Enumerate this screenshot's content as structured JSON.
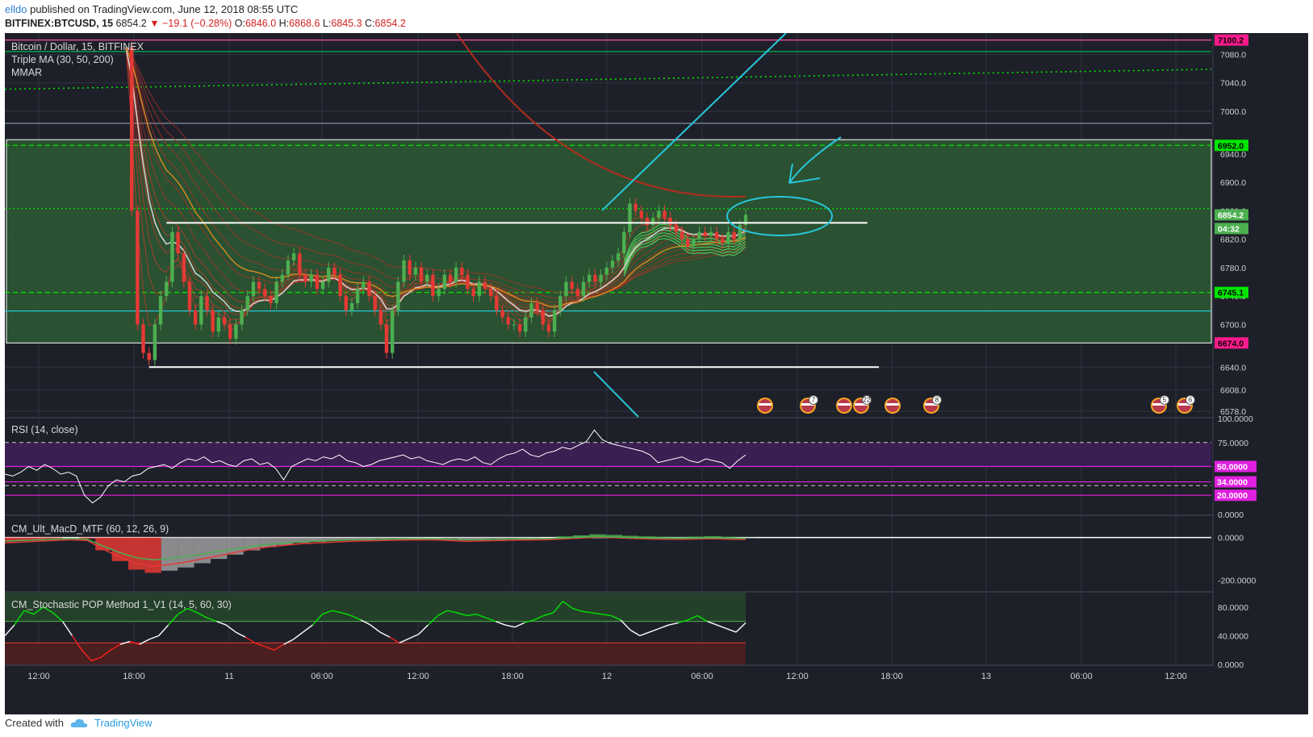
{
  "header": {
    "user": "elldo",
    "published_text": "published on TradingView.com, June 12, 2018 08:55 UTC",
    "symbol": "BITFINEX:BTCUSD, 15",
    "last": "6854.2",
    "change": "▼ −19.1 (−0.28%)",
    "o_label": "O:",
    "o_value": "6846.0",
    "h_label": "H:",
    "h_value": "6868.6",
    "l_label": "L:",
    "l_value": "6845.3",
    "c_label": "C:",
    "c_value": "6854.2"
  },
  "legend": {
    "line1": "Bitcoin / Dollar, 15, BITFINEX",
    "line2": "Triple MA (30, 50, 200)",
    "line3": "MMAR"
  },
  "colors": {
    "background": "#1e2029",
    "grid": "#2f3340",
    "zone_fill": "#2d5a33",
    "up": "#4caf50",
    "down": "#e53935",
    "cyan_drawing": "#26c6da",
    "magenta": "#e020e0",
    "green_label": "#00e600",
    "pink_label": "#ff1a8c"
  },
  "chart_data": [
    {
      "type": "candlestick",
      "title": "Bitcoin / Dollar, 15, BITFINEX",
      "ylim": [
        6570,
        7110
      ],
      "y_ticks": [
        6578,
        6608,
        6640,
        6700,
        6740,
        6780,
        6820,
        6860,
        6900,
        6940,
        7000,
        7040,
        7080
      ],
      "y_tick_labels": [
        "6578.0",
        "6608.0",
        "6640.0",
        "6700.0",
        "6740.0",
        "6780.0",
        "6820.0",
        "6860.0",
        "6900.0",
        "6940.0",
        "7000.0",
        "7040.0",
        "7080.0"
      ],
      "price_labels": [
        {
          "value": 7100.2,
          "text": "7100.2",
          "color": "#ff1a8c"
        },
        {
          "value": 6952.0,
          "text": "6952.0",
          "color": "#00e600"
        },
        {
          "value": 6854.2,
          "text": "6854.2",
          "color": "#4caf50"
        },
        {
          "value": 6835,
          "text": "04:32",
          "color": "#4caf50"
        },
        {
          "value": 6745.1,
          "text": "6745.1",
          "color": "#00e600"
        },
        {
          "value": 6674.0,
          "text": "6674.0",
          "color": "#ff1a8c"
        }
      ],
      "x_tick_labels": [
        "12:00",
        "18:00",
        "11",
        "06:00",
        "12:00",
        "18:00",
        "12",
        "06:00",
        "12:00",
        "18:00",
        "13",
        "06:00",
        "12:00"
      ],
      "horizontal_levels": [
        {
          "value": 7100.2,
          "style": "solid",
          "color": "#ff4da6"
        },
        {
          "value": 7084,
          "style": "solid",
          "color": "#00c853"
        },
        {
          "value": 6983,
          "style": "solid",
          "color": "#8f9bb3"
        },
        {
          "value": 6952.0,
          "style": "dashed",
          "color": "#00e600"
        },
        {
          "value": 6863,
          "style": "dotted",
          "color": "#00e600"
        },
        {
          "value": 6745.1,
          "style": "dashed",
          "color": "#00e600"
        },
        {
          "value": 6719,
          "style": "solid",
          "color": "#26c6da"
        }
      ],
      "support_resistance": [
        {
          "value": 6843,
          "from_index": 7,
          "to_index": 128
        },
        {
          "value": 6640,
          "from_index": 4,
          "to_index": 130
        }
      ],
      "trend_dotted_line": {
        "from": 7031,
        "to": 7059
      },
      "event_markers": [
        "",
        "7",
        "",
        "22",
        "",
        "8",
        "5",
        "6"
      ],
      "candles_close": [
        7090,
        6860,
        6700,
        6660,
        6650,
        6700,
        6740,
        6760,
        6830,
        6800,
        6760,
        6720,
        6700,
        6740,
        6720,
        6690,
        6710,
        6700,
        6680,
        6700,
        6720,
        6740,
        6760,
        6750,
        6740,
        6730,
        6760,
        6770,
        6790,
        6800,
        6770,
        6760,
        6770,
        6750,
        6760,
        6780,
        6770,
        6740,
        6720,
        6730,
        6750,
        6760,
        6740,
        6720,
        6700,
        6660,
        6720,
        6760,
        6790,
        6770,
        6780,
        6760,
        6770,
        6740,
        6750,
        6770,
        6760,
        6780,
        6770,
        6750,
        6740,
        6760,
        6750,
        6740,
        6720,
        6710,
        6700,
        6700,
        6690,
        6710,
        6730,
        6720,
        6700,
        6690,
        6720,
        6740,
        6760,
        6750,
        6740,
        6760,
        6770,
        6760,
        6770,
        6780,
        6790,
        6800,
        6830,
        6870,
        6860,
        6850,
        6840,
        6850,
        6860,
        6850,
        6840,
        6830,
        6820,
        6810,
        6820,
        6830,
        6825,
        6830,
        6820,
        6815,
        6830,
        6820,
        6840,
        6854.2
      ]
    },
    {
      "type": "line",
      "title": "RSI (14, close)",
      "ylim": [
        0,
        100
      ],
      "y_tick_labels": [
        "100.0000",
        "75.0000",
        "0.0000"
      ],
      "levels": [
        {
          "value": 50,
          "text": "50.0000"
        },
        {
          "value": 34,
          "text": "34.0000"
        },
        {
          "value": 20,
          "text": "20.0000"
        }
      ],
      "values": [
        42,
        40,
        44,
        50,
        46,
        52,
        48,
        42,
        44,
        40,
        20,
        12,
        18,
        30,
        36,
        34,
        40,
        42,
        48,
        50,
        52,
        48,
        54,
        58,
        56,
        60,
        54,
        56,
        52,
        50,
        56,
        58,
        52,
        54,
        48,
        36,
        50,
        54,
        58,
        56,
        60,
        58,
        62,
        56,
        54,
        50,
        52,
        56,
        58,
        60,
        62,
        58,
        60,
        56,
        54,
        52,
        56,
        58,
        56,
        60,
        54,
        52,
        58,
        62,
        64,
        68,
        62,
        60,
        64,
        66,
        70,
        68,
        72,
        76,
        88,
        78,
        74,
        72,
        70,
        68,
        66,
        62,
        54,
        56,
        58,
        60,
        56,
        54,
        58,
        56,
        54,
        48,
        56,
        62
      ]
    },
    {
      "type": "line",
      "title": "CM_Ult_MacD_MTF (60, 12, 26, 9)",
      "ylim": [
        -250,
        100
      ],
      "y_tick_labels": [
        "0.0000",
        "-200.0000"
      ],
      "values": [
        -20,
        -15,
        -10,
        -5,
        0,
        -5,
        -60,
        -110,
        -150,
        -165,
        -155,
        -140,
        -120,
        -100,
        -80,
        -60,
        -45,
        -35,
        -25,
        -20,
        -15,
        -10,
        -8,
        -5,
        -3,
        -2,
        -1,
        -5,
        -10,
        -8,
        -5,
        -3,
        -2,
        0,
        5,
        10,
        15,
        12,
        8,
        5,
        3,
        2,
        4,
        6,
        3,
        1
      ]
    },
    {
      "type": "line",
      "title": "CM_Stochastic POP Method 1_V1 (14, 5, 60, 30)",
      "ylim": [
        0,
        100
      ],
      "y_tick_labels": [
        "80.0000",
        "40.0000",
        "0.0000"
      ],
      "levels": [
        60,
        30
      ],
      "values": [
        40,
        55,
        75,
        70,
        80,
        72,
        60,
        40,
        20,
        5,
        10,
        20,
        28,
        32,
        28,
        35,
        40,
        55,
        70,
        78,
        72,
        65,
        60,
        55,
        45,
        38,
        30,
        25,
        20,
        28,
        35,
        45,
        55,
        70,
        75,
        72,
        68,
        62,
        55,
        45,
        38,
        30,
        36,
        42,
        55,
        68,
        75,
        72,
        68,
        70,
        65,
        60,
        55,
        52,
        58,
        62,
        68,
        72,
        88,
        78,
        74,
        72,
        70,
        68,
        62,
        48,
        40,
        45,
        50,
        55,
        58,
        62,
        68,
        60,
        55,
        50,
        45,
        58
      ]
    }
  ],
  "footer": {
    "created_with": "Created with",
    "brand": "TradingView"
  }
}
